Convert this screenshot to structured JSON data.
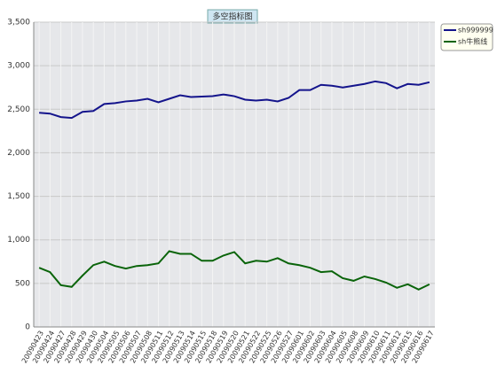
{
  "chart_data": {
    "type": "line",
    "title": "多空指标图",
    "categories": [
      "20090423",
      "20090424",
      "20090427",
      "20090428",
      "20090429",
      "20090430",
      "20090504",
      "20090505",
      "20090506",
      "20090507",
      "20090508",
      "20090511",
      "20090512",
      "20090513",
      "20090514",
      "20090515",
      "20090518",
      "20090519",
      "20090520",
      "20090521",
      "20090522",
      "20090525",
      "20090526",
      "20090527",
      "20090601",
      "20090602",
      "20090603",
      "20090604",
      "20090605",
      "20090608",
      "20090609",
      "20090610",
      "20090611",
      "20090612",
      "20090615",
      "20090616",
      "20090617"
    ],
    "series": [
      {
        "name": "sh999999",
        "color": "#14148c",
        "values": [
          2460,
          2450,
          2410,
          2400,
          2470,
          2480,
          2560,
          2570,
          2590,
          2600,
          2620,
          2580,
          2620,
          2660,
          2640,
          2645,
          2650,
          2670,
          2650,
          2610,
          2600,
          2610,
          2590,
          2630,
          2720,
          2720,
          2780,
          2770,
          2750,
          2770,
          2790,
          2820,
          2800,
          2740,
          2790,
          2780,
          2810
        ]
      },
      {
        "name": "sh牛熊线",
        "color": "#0a640a",
        "values": [
          680,
          630,
          480,
          460,
          590,
          710,
          750,
          700,
          670,
          700,
          710,
          730,
          870,
          840,
          840,
          760,
          760,
          820,
          860,
          730,
          760,
          750,
          790,
          730,
          710,
          680,
          630,
          640,
          560,
          530,
          580,
          550,
          510,
          450,
          490,
          430,
          490
        ]
      }
    ],
    "ylim": [
      0,
      3500
    ],
    "yticks": [
      0,
      500,
      {
        "value": 1000,
        "label": "1,000"
      },
      {
        "value": 1500,
        "label": "1,500"
      },
      {
        "value": 2000,
        "label": "2,000"
      },
      {
        "value": 2500,
        "label": "2,500"
      },
      {
        "value": 3000,
        "label": "3,000"
      },
      {
        "value": 3500,
        "label": "3,500"
      }
    ],
    "grid": true,
    "legend": "right"
  }
}
